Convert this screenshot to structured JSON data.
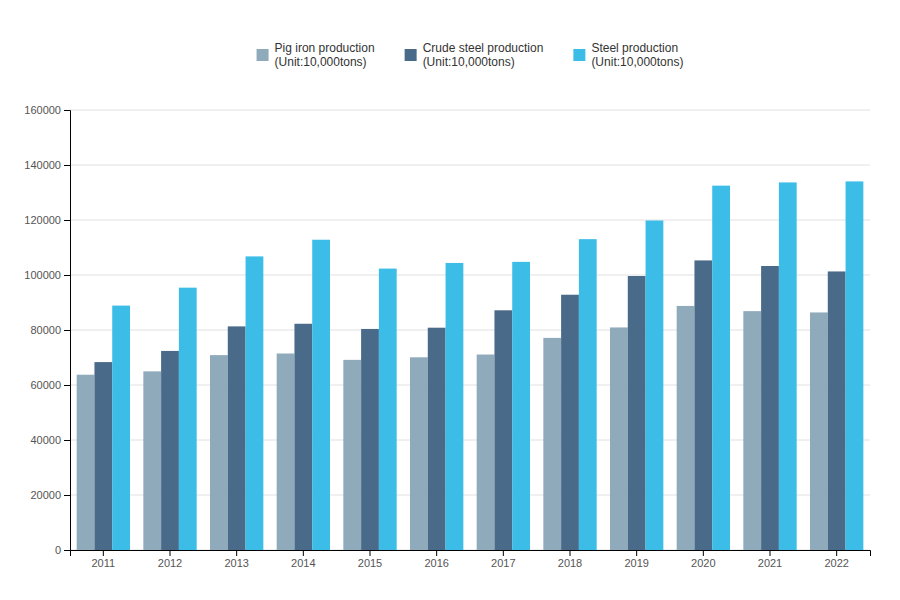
{
  "chart_data": {
    "type": "bar",
    "categories": [
      "2011",
      "2012",
      "2013",
      "2014",
      "2015",
      "2016",
      "2017",
      "2018",
      "2019",
      "2020",
      "2021",
      "2022"
    ],
    "series": [
      {
        "name": "Pig iron production\n(Unit:10,000tons)",
        "color": "#8faabb",
        "values": [
          63735,
          64954,
          70867,
          71456,
          69141,
          70074,
          71079,
          77135,
          80930,
          88752,
          86857,
          86382
        ]
      },
      {
        "name": "Crude steel production\n(Unit:10,000tons)",
        "color": "#4a6a8a",
        "values": [
          68330,
          72388,
          81314,
          82270,
          80382,
          80837,
          87165,
          92826,
          99634,
          105300,
          103279,
          101292
        ]
      },
      {
        "name": "Steel production\n(Unit:10,000tons)",
        "color": "#3bbde8",
        "values": [
          88877,
          95394,
          106762,
          112824,
          102331,
          104374,
          104773,
          113039,
          119820,
          132489,
          133666,
          134033
        ]
      }
    ],
    "ylim": [
      0,
      160000
    ],
    "yticks": [
      0,
      20000,
      40000,
      60000,
      80000,
      100000,
      120000,
      140000,
      160000
    ],
    "grid": true,
    "legend": "top"
  }
}
